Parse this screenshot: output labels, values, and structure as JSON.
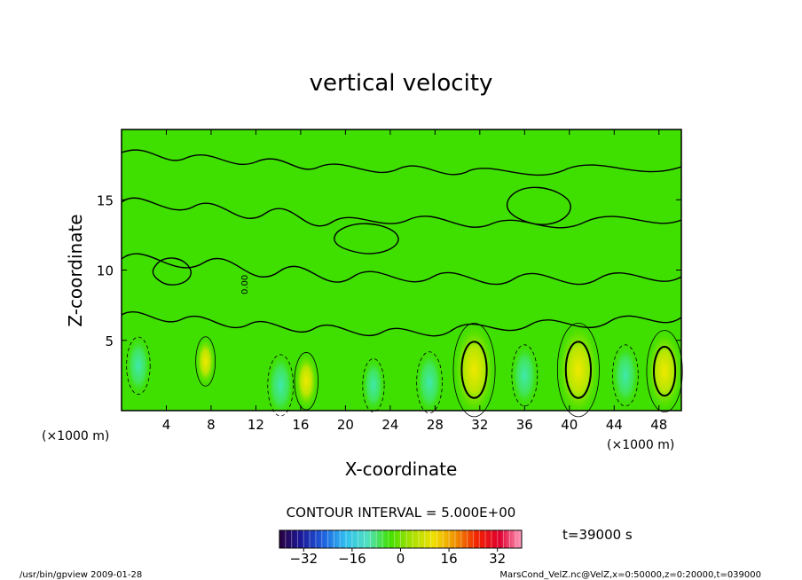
{
  "chart_data": {
    "type": "heatmap",
    "title": "vertical velocity",
    "xlabel": "X-coordinate",
    "ylabel": "Z-coordinate",
    "x_unit_left": "(×1000 m)",
    "x_unit_right": "(×1000 m)",
    "x_ticks": [
      4,
      8,
      12,
      16,
      20,
      24,
      28,
      32,
      36,
      40,
      44,
      48
    ],
    "y_ticks": [
      5,
      10,
      15
    ],
    "xlim": [
      0,
      50
    ],
    "ylim": [
      0,
      20
    ],
    "contour_interval_text": "CONTOUR INTERVAL = 5.000E+00",
    "contour_zero_label": "0.00",
    "time_label": "t=39000 s",
    "colorbar_ticks": [
      -32,
      -16,
      0,
      16,
      32
    ],
    "colorbar_range": [
      -40,
      40
    ],
    "colormap": [
      "#2a0040",
      "#1a1a9a",
      "#1e60e0",
      "#30c0f0",
      "#50e0c0",
      "#40e000",
      "#a8e000",
      "#f0e000",
      "#f09000",
      "#f02000",
      "#e00030",
      "#ffa0c0"
    ],
    "background_color": "#3fe000",
    "features": [
      {
        "kind": "updraft",
        "x": 31.5,
        "z": 2.9,
        "w": 14
      },
      {
        "kind": "updraft",
        "x": 40.8,
        "z": 2.9,
        "w": 14
      },
      {
        "kind": "updraft",
        "x": 48.5,
        "z": 2.8,
        "w": 11
      },
      {
        "kind": "updraft",
        "x": 16.5,
        "z": 2.1,
        "w": 5
      },
      {
        "kind": "updraft",
        "x": 7.5,
        "z": 3.5,
        "w": 3
      },
      {
        "kind": "downdraft",
        "x": 1.5,
        "z": 3.2,
        "w": -5
      },
      {
        "kind": "downdraft",
        "x": 14.2,
        "z": 1.8,
        "w": -6
      },
      {
        "kind": "downdraft",
        "x": 22.5,
        "z": 1.8,
        "w": -4
      },
      {
        "kind": "downdraft",
        "x": 27.5,
        "z": 2.0,
        "w": -6
      },
      {
        "kind": "downdraft",
        "x": 36.0,
        "z": 2.5,
        "w": -6
      },
      {
        "kind": "downdraft",
        "x": 45.0,
        "z": 2.5,
        "w": -6
      }
    ]
  },
  "footer": {
    "left": "/usr/bin/gpview  2009-01-28",
    "right": "MarsCond_VelZ.nc@VelZ,x=0:50000,z=0:20000,t=039000"
  }
}
